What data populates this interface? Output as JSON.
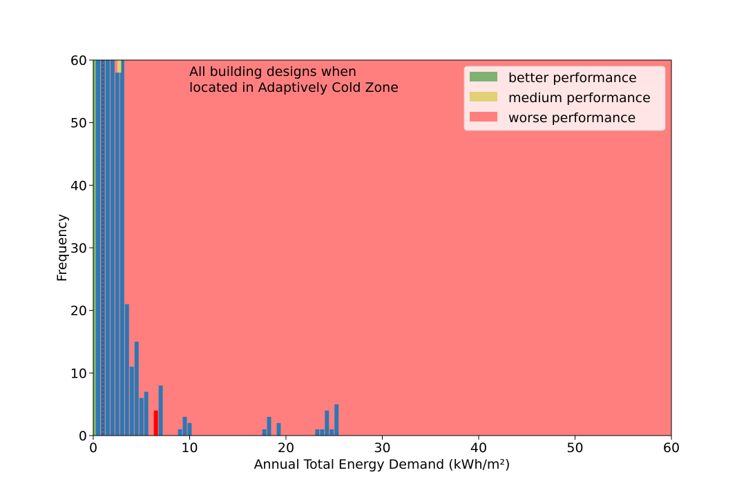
{
  "chart_data": {
    "type": "bar",
    "annotation": [
      "All building designs when",
      "located in Adaptively Cold Zone"
    ],
    "xlabel": "Annual Total Energy Demand",
    "xlabel_unit": "(kWh/m²)",
    "ylabel": "Frequency",
    "xlim": [
      0,
      60
    ],
    "ylim": [
      0,
      60
    ],
    "xticks": [
      0,
      10,
      20,
      30,
      40,
      50,
      60
    ],
    "yticks": [
      0,
      10,
      20,
      30,
      40,
      50,
      60
    ],
    "grid": false,
    "legend_position": "top-right",
    "bin_width": 0.5,
    "regions": [
      {
        "name": "better performance",
        "from": 0,
        "to": 0.4,
        "color": "#7fb172"
      },
      {
        "name": "medium performance",
        "from": 2.5,
        "to": 2.9,
        "color": "#e0d174"
      },
      {
        "name": "worse performance",
        "from": 0,
        "to": 60,
        "color": "#ff7f7f"
      }
    ],
    "marker_line_x": 1.0,
    "series": [
      {
        "color": "#2b78b4",
        "bars": [
          {
            "x": 0.5,
            "value": 60
          },
          {
            "x": 1.0,
            "value": 60
          },
          {
            "x": 1.5,
            "value": 60
          },
          {
            "x": 2.0,
            "value": 60
          },
          {
            "x": 2.5,
            "value": 58
          },
          {
            "x": 3.0,
            "value": 60
          },
          {
            "x": 3.5,
            "value": 21
          },
          {
            "x": 4.0,
            "value": 11
          },
          {
            "x": 4.5,
            "value": 15
          },
          {
            "x": 5.0,
            "value": 6
          },
          {
            "x": 5.5,
            "value": 7
          },
          {
            "x": 7.0,
            "value": 8
          },
          {
            "x": 9.0,
            "value": 1
          },
          {
            "x": 9.5,
            "value": 3
          },
          {
            "x": 10.0,
            "value": 2
          },
          {
            "x": 17.75,
            "value": 1
          },
          {
            "x": 18.25,
            "value": 3
          },
          {
            "x": 19.25,
            "value": 2
          },
          {
            "x": 23.25,
            "value": 1
          },
          {
            "x": 23.75,
            "value": 1
          },
          {
            "x": 24.25,
            "value": 4
          },
          {
            "x": 24.75,
            "value": 1
          },
          {
            "x": 25.25,
            "value": 5
          }
        ]
      },
      {
        "color": "#ff0000",
        "bars": [
          {
            "x": 6.5,
            "value": 4
          }
        ]
      }
    ]
  }
}
